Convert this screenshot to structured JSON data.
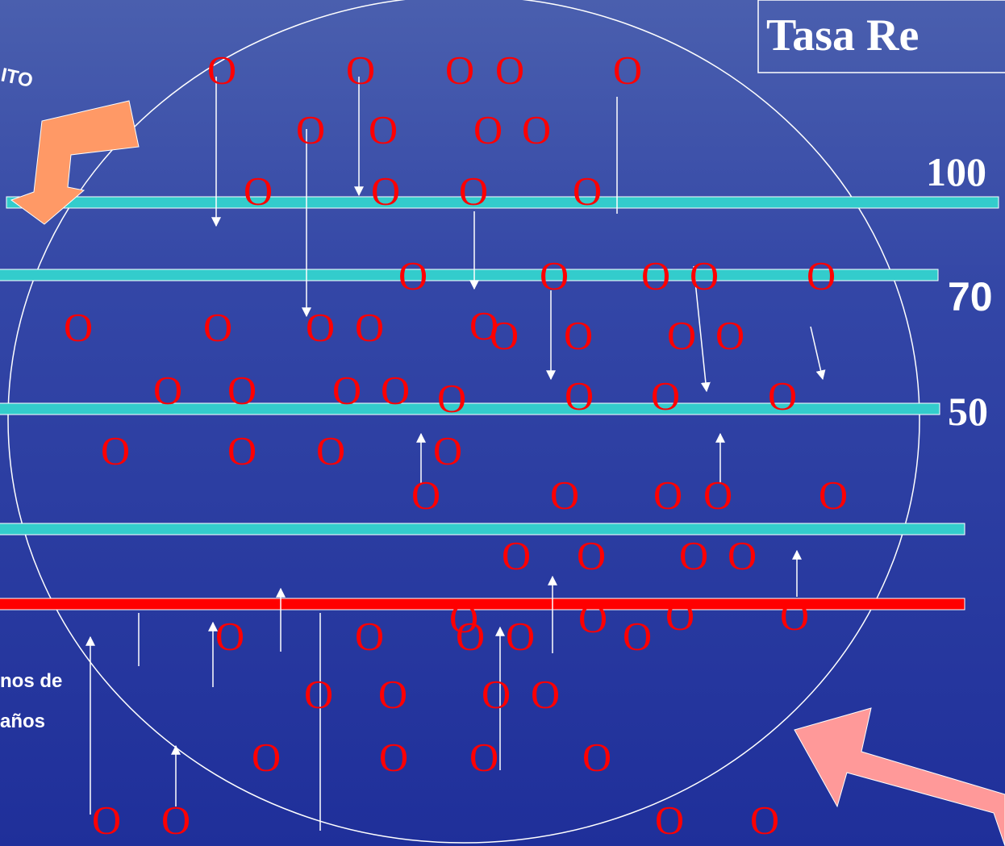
{
  "title": "Tasa Re",
  "levels": [
    "100",
    "70",
    "50"
  ],
  "top_left_label": "ITO",
  "bottom_left_label": [
    "nos de",
    "años"
  ],
  "marker": "O"
}
